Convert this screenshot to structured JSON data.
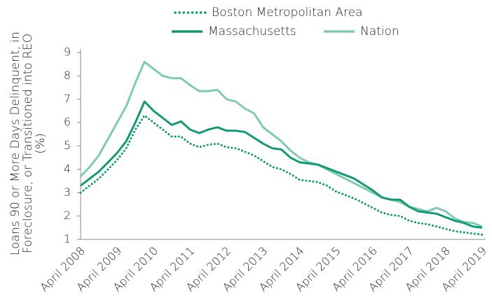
{
  "chart_data": {
    "type": "line",
    "ylabel": [
      "Loans 90 or More Days Delinquent, in",
      "Foreclosure, or Transitioned into REO",
      "(%)"
    ],
    "x": [
      "April 2008",
      null,
      null,
      null,
      "April 2009",
      null,
      null,
      null,
      "April 2010",
      null,
      null,
      null,
      "April 2011",
      null,
      null,
      null,
      "April 2012",
      null,
      null,
      null,
      "April 2013",
      null,
      null,
      null,
      "April 2014",
      null,
      null,
      null,
      "April 2015",
      null,
      null,
      null,
      "April 2016",
      null,
      null,
      null,
      "April 2017",
      null,
      null,
      null,
      "April 2018",
      null,
      null,
      null,
      "April 2019"
    ],
    "series": [
      {
        "name": "Boston Metropolitan Area",
        "color": "#11996e",
        "style": "dotted",
        "values": [
          3.0,
          3.3,
          3.6,
          4.0,
          4.4,
          4.9,
          5.7,
          6.3,
          6.0,
          5.7,
          5.4,
          5.4,
          5.1,
          4.95,
          5.05,
          5.1,
          4.95,
          4.9,
          4.75,
          4.6,
          4.35,
          4.1,
          4.0,
          3.8,
          3.55,
          3.5,
          3.45,
          3.3,
          3.05,
          2.9,
          2.75,
          2.55,
          2.35,
          2.15,
          2.05,
          2.0,
          1.8,
          1.7,
          1.65,
          1.55,
          1.45,
          1.35,
          1.3,
          1.25,
          1.2
        ]
      },
      {
        "name": "Massachusetts",
        "color": "#139a74",
        "style": "solid",
        "values": [
          3.3,
          3.6,
          3.9,
          4.3,
          4.7,
          5.2,
          6.0,
          6.9,
          6.5,
          6.2,
          5.9,
          6.05,
          5.7,
          5.55,
          5.7,
          5.8,
          5.65,
          5.65,
          5.6,
          5.35,
          5.1,
          4.9,
          4.85,
          4.5,
          4.3,
          4.25,
          4.2,
          4.05,
          3.9,
          3.75,
          3.6,
          3.35,
          3.1,
          2.8,
          2.7,
          2.7,
          2.4,
          2.2,
          2.15,
          2.1,
          1.95,
          1.8,
          1.7,
          1.55,
          1.5
        ]
      },
      {
        "name": "Nation",
        "color": "#80c9b5",
        "style": "solid",
        "values": [
          3.7,
          4.1,
          4.6,
          5.3,
          6.0,
          6.7,
          7.7,
          8.6,
          8.3,
          8.0,
          7.9,
          7.9,
          7.6,
          7.35,
          7.35,
          7.4,
          7.0,
          6.9,
          6.6,
          6.4,
          5.8,
          5.5,
          5.2,
          4.8,
          4.5,
          4.3,
          4.2,
          4.0,
          3.8,
          3.6,
          3.4,
          3.2,
          3.0,
          2.8,
          2.7,
          2.6,
          2.4,
          2.3,
          2.2,
          2.35,
          2.2,
          1.9,
          1.75,
          1.7,
          1.55
        ]
      }
    ],
    "ylim": [
      1,
      9
    ],
    "yticks": [
      1,
      2,
      3,
      4,
      5,
      6,
      7,
      8,
      9
    ],
    "grid": false
  }
}
